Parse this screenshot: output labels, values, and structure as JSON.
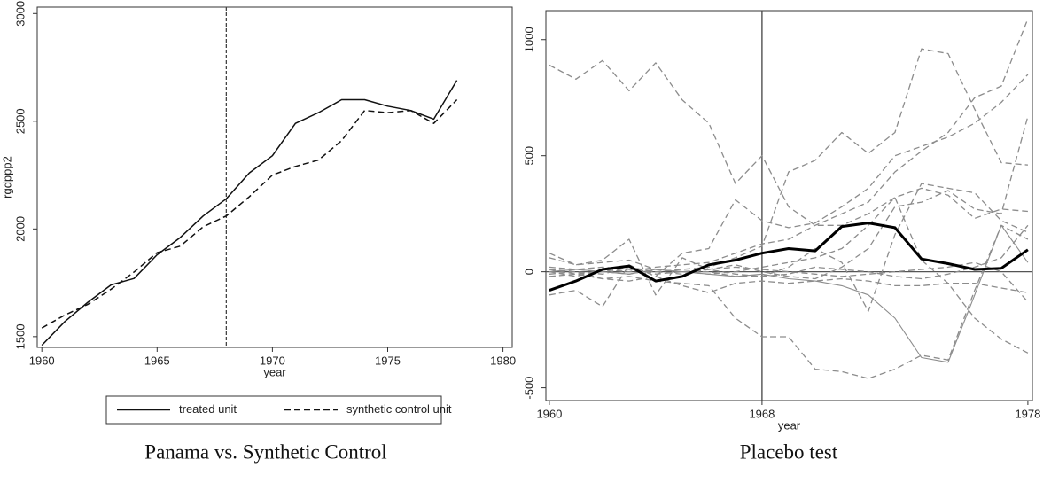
{
  "chart_data": [
    {
      "type": "line",
      "caption": "Panama vs. Synthetic Control",
      "x_label": "year",
      "y_label": "rgdppp2",
      "x": [
        1960,
        1961,
        1962,
        1963,
        1964,
        1965,
        1966,
        1967,
        1968,
        1969,
        1970,
        1971,
        1972,
        1973,
        1974,
        1975,
        1976,
        1977,
        1978
      ],
      "xlim": [
        1959.8,
        1980.4
      ],
      "xticks": [
        1960,
        1965,
        1970,
        1975,
        1980
      ],
      "ylim": [
        1450,
        3030
      ],
      "yticks": [
        1500,
        2000,
        2500,
        3000
      ],
      "vline": 1968,
      "vline_dash": "dashed",
      "legend": "bottom",
      "series": [
        {
          "name": "treated unit",
          "color": "#111111",
          "dash": "solid",
          "width": 1.5,
          "values": [
            1460,
            1570,
            1660,
            1740,
            1770,
            1880,
            1960,
            2060,
            2140,
            2260,
            2340,
            2490,
            2540,
            2600,
            2600,
            2570,
            2550,
            2510,
            2690
          ]
        },
        {
          "name": "synthetic control unit",
          "color": "#111111",
          "dash": "dashed",
          "width": 1.5,
          "values": [
            1540,
            1600,
            1650,
            1720,
            1800,
            1890,
            1920,
            2010,
            2060,
            2150,
            2250,
            2290,
            2320,
            2410,
            2550,
            2540,
            2550,
            2490,
            2600
          ]
        }
      ]
    },
    {
      "type": "line",
      "caption": "Placebo test",
      "x_label": "year",
      "x": [
        1960,
        1961,
        1962,
        1963,
        1964,
        1965,
        1966,
        1967,
        1968,
        1969,
        1970,
        1971,
        1972,
        1973,
        1974,
        1975,
        1976,
        1977,
        1978
      ],
      "xlim": [
        1959.87,
        1978.17
      ],
      "xticks": [
        1960,
        1968,
        1978
      ],
      "ylim": [
        -555,
        1125
      ],
      "yticks": [
        -500,
        0,
        500,
        1000
      ],
      "vline": 1968,
      "vline_dash": "solid",
      "hline": 0,
      "series": [
        {
          "color": "#8c8c8c",
          "dash": "dashed",
          "width": 1.3,
          "values": [
            890,
            830,
            910,
            780,
            900,
            740,
            640,
            380,
            500,
            280,
            200,
            200,
            250,
            320,
            360,
            330,
            230,
            270,
            260
          ]
        },
        {
          "color": "#8c8c8c",
          "dash": "dashed",
          "width": 1.3,
          "values": [
            0,
            -20,
            10,
            0,
            20,
            30,
            40,
            80,
            120,
            140,
            200,
            250,
            300,
            430,
            520,
            600,
            750,
            800,
            1090
          ]
        },
        {
          "color": "#8c8c8c",
          "dash": "dashed",
          "width": 1.3,
          "values": [
            10,
            0,
            -10,
            20,
            0,
            10,
            20,
            60,
            110,
            430,
            480,
            600,
            510,
            600,
            960,
            940,
            700,
            470,
            460
          ]
        },
        {
          "color": "#8c8c8c",
          "dash": "dashed",
          "width": 1.3,
          "values": [
            -100,
            -80,
            -150,
            30,
            -20,
            80,
            100,
            310,
            220,
            190,
            210,
            280,
            360,
            500,
            540,
            580,
            640,
            730,
            850
          ]
        },
        {
          "color": "#8c8c8c",
          "dash": "dashed",
          "width": 1.3,
          "values": [
            -10,
            0,
            -30,
            -20,
            -40,
            -50,
            -60,
            -200,
            -280,
            -280,
            -420,
            -430,
            -460,
            -420,
            -360,
            -380,
            -80,
            200,
            140
          ]
        },
        {
          "color": "#8c8c8c",
          "dash": "dashed",
          "width": 1.3,
          "values": [
            60,
            30,
            40,
            50,
            10,
            0,
            0,
            -20,
            -20,
            20,
            100,
            40,
            -170,
            160,
            380,
            360,
            340,
            220,
            170
          ]
        },
        {
          "color": "#8c8c8c",
          "dash": "solid",
          "width": 1.1,
          "values": [
            0,
            10,
            0,
            -10,
            10,
            0,
            -10,
            -20,
            -10,
            -30,
            -40,
            -60,
            -100,
            -200,
            -370,
            -390,
            -100,
            200,
            40
          ]
        },
        {
          "color": "#8c8c8c",
          "dash": "dashed",
          "width": 1.3,
          "values": [
            20,
            10,
            0,
            -10,
            10,
            0,
            -10,
            0,
            20,
            40,
            60,
            100,
            200,
            320,
            50,
            -50,
            -200,
            -290,
            -350
          ]
        },
        {
          "color": "#8c8c8c",
          "dash": "dashed",
          "width": 1.3,
          "values": [
            80,
            30,
            50,
            140,
            -100,
            60,
            10,
            30,
            0,
            -20,
            -30,
            20,
            100,
            280,
            300,
            350,
            270,
            250,
            670
          ]
        },
        {
          "color": "#8c8c8c",
          "dash": "dashed",
          "width": 1.3,
          "values": [
            -20,
            -10,
            -30,
            -40,
            -20,
            -60,
            -90,
            -50,
            -40,
            -50,
            -40,
            -30,
            -40,
            -60,
            -60,
            -50,
            -50,
            -70,
            -90
          ]
        },
        {
          "color": "#8c8c8c",
          "dash": "dashed",
          "width": 1.3,
          "values": [
            0,
            10,
            20,
            10,
            0,
            -10,
            10,
            20,
            10,
            0,
            -10,
            -20,
            -10,
            0,
            10,
            20,
            40,
            0,
            -130
          ]
        },
        {
          "color": "#8c8c8c",
          "dash": "dashed",
          "width": 1.3,
          "values": [
            10,
            -10,
            0,
            20,
            -10,
            0,
            10,
            -10,
            -20,
            -10,
            20,
            10,
            0,
            -20,
            -30,
            -10,
            20,
            60,
            200
          ]
        },
        {
          "color": "#000000",
          "dash": "solid",
          "width": 3,
          "values": [
            -80,
            -40,
            10,
            25,
            -40,
            -20,
            30,
            50,
            80,
            100,
            90,
            195,
            210,
            190,
            55,
            35,
            10,
            15,
            95
          ]
        }
      ]
    }
  ]
}
